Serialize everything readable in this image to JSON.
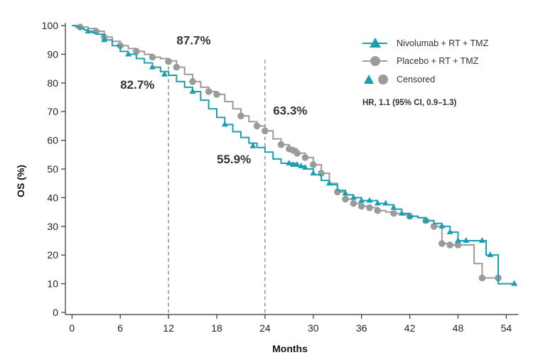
{
  "chart_data": {
    "type": "line",
    "title": "",
    "xlabel": "Months",
    "ylabel": "OS (%)",
    "xlim": [
      -1,
      56
    ],
    "ylim": [
      -1,
      102
    ],
    "x_ticks": [
      "0",
      "6",
      "12",
      "18",
      "24",
      "30",
      "36",
      "42",
      "48",
      "54"
    ],
    "y_ticks": [
      "0",
      "10",
      "20",
      "30",
      "40",
      "50",
      "60",
      "70",
      "80",
      "90",
      "100"
    ],
    "grid": false,
    "legend_position": "top-right",
    "series": [
      {
        "name": "Nivolumab + RT + TMZ",
        "color": "#1a9fb0",
        "marker": "triangle",
        "x": [
          0,
          0.5,
          1,
          1.5,
          2,
          2.5,
          3,
          4,
          5,
          6,
          7,
          8,
          9,
          10,
          11,
          12,
          13,
          14,
          15,
          16,
          17,
          18,
          19,
          20,
          21,
          22,
          23,
          24,
          25,
          26,
          27,
          28,
          29,
          30,
          31,
          32,
          33,
          34,
          35,
          36,
          37,
          38,
          39,
          40,
          41,
          42,
          43,
          44,
          45,
          46,
          47,
          48,
          49,
          50,
          51,
          51.5,
          52,
          53,
          55
        ],
        "y": [
          100,
          99.5,
          99,
          98.5,
          98,
          97.5,
          97,
          95,
          93,
          91,
          90,
          88.5,
          87,
          85.5,
          84,
          82.7,
          80.5,
          78.5,
          77,
          74,
          71,
          68,
          65.5,
          63,
          61,
          59,
          57.5,
          55.9,
          53.5,
          52,
          52,
          51,
          50,
          48,
          46,
          44.5,
          42.5,
          41,
          40,
          39,
          39,
          38,
          37.5,
          36,
          34.5,
          33.5,
          33,
          32,
          31,
          30,
          28,
          25,
          25,
          25,
          25,
          20,
          20,
          10,
          10
        ],
        "censored": [
          [
            2,
            98
          ],
          [
            4,
            95
          ],
          [
            7,
            90
          ],
          [
            10,
            85.5
          ],
          [
            11.5,
            83
          ],
          [
            15,
            77
          ],
          [
            19,
            65.5
          ],
          [
            22.5,
            58
          ],
          [
            27,
            52
          ],
          [
            27.5,
            51.5
          ],
          [
            28,
            51.5
          ],
          [
            28.5,
            51
          ],
          [
            29,
            50.5
          ],
          [
            30,
            48.5
          ],
          [
            32,
            45
          ],
          [
            34,
            41.5
          ],
          [
            35,
            40
          ],
          [
            36,
            39
          ],
          [
            37,
            39
          ],
          [
            38,
            38
          ],
          [
            39,
            38
          ],
          [
            40,
            36.5
          ],
          [
            41,
            34.5
          ],
          [
            42,
            33.5
          ],
          [
            44,
            32
          ],
          [
            46,
            30
          ],
          [
            47,
            28
          ],
          [
            48,
            25
          ],
          [
            49,
            25
          ],
          [
            51,
            25
          ],
          [
            52,
            20
          ],
          [
            55,
            10
          ]
        ]
      },
      {
        "name": "Placebo + RT + TMZ",
        "color": "#9b9b9b",
        "marker": "circle",
        "x": [
          0,
          1,
          2,
          3,
          4,
          5,
          6,
          7,
          8,
          9,
          10,
          11,
          12,
          13,
          14,
          15,
          16,
          17,
          18,
          19,
          20,
          21,
          22,
          23,
          24,
          25,
          26,
          27,
          28,
          29,
          30,
          31,
          32,
          33,
          34,
          35,
          36,
          37,
          38,
          39,
          40,
          41,
          42,
          43,
          44,
          45,
          46,
          47,
          48,
          49,
          50,
          51,
          52,
          53
        ],
        "y": [
          100,
          99.5,
          99,
          98,
          96,
          94.5,
          93,
          92,
          91,
          90,
          89,
          88.5,
          87.7,
          85.5,
          83,
          80.5,
          78.5,
          77,
          76,
          73.5,
          71,
          68.5,
          66.5,
          65,
          63.3,
          60.5,
          58.5,
          57,
          55.5,
          54,
          51.5,
          48.5,
          45,
          42,
          39.5,
          38,
          37,
          36.5,
          35.5,
          35,
          34.5,
          34,
          33.5,
          33,
          32,
          30,
          24,
          23.5,
          23.5,
          23.5,
          17,
          12,
          12,
          12
        ],
        "censored": [
          [
            1,
            99.5
          ],
          [
            3,
            98
          ],
          [
            4,
            96
          ],
          [
            6,
            93
          ],
          [
            8,
            91
          ],
          [
            10,
            89
          ],
          [
            12,
            87.5
          ],
          [
            13,
            85.5
          ],
          [
            15,
            80.5
          ],
          [
            17,
            77
          ],
          [
            18,
            76
          ],
          [
            21,
            68.5
          ],
          [
            23,
            65
          ],
          [
            24,
            63.3
          ],
          [
            26,
            58.5
          ],
          [
            27,
            57
          ],
          [
            27.5,
            56.5
          ],
          [
            28,
            55.5
          ],
          [
            29,
            54
          ],
          [
            30,
            51.5
          ],
          [
            31,
            48.5
          ],
          [
            33,
            42
          ],
          [
            34,
            39.5
          ],
          [
            35,
            38
          ],
          [
            36,
            37
          ],
          [
            37,
            36.5
          ],
          [
            38,
            35.5
          ],
          [
            40,
            34.5
          ],
          [
            42,
            33.5
          ],
          [
            44,
            32
          ],
          [
            45,
            30
          ],
          [
            46,
            24
          ],
          [
            47,
            23.5
          ],
          [
            48,
            23.5
          ],
          [
            51,
            12
          ],
          [
            53,
            12
          ]
        ]
      }
    ],
    "legend": {
      "entries": [
        "Nivolumab + RT + TMZ",
        "Placebo + RT + TMZ"
      ],
      "censored_label": "Censored"
    },
    "reference_lines": [
      {
        "x": 12,
        "label": "12"
      },
      {
        "x": 24,
        "label": "24"
      }
    ],
    "annotations": [
      {
        "text": "87.7%",
        "x": 13.0,
        "y": 93.5
      },
      {
        "text": "82.7%",
        "x": 6.0,
        "y": 78.0
      },
      {
        "text": "63.3%",
        "x": 25.0,
        "y": 69.0
      },
      {
        "text": "55.9%",
        "x": 18.0,
        "y": 52.0
      }
    ],
    "hazard_ratio": "HR, 1.1 (95% CI, 0.9–1.3)"
  }
}
